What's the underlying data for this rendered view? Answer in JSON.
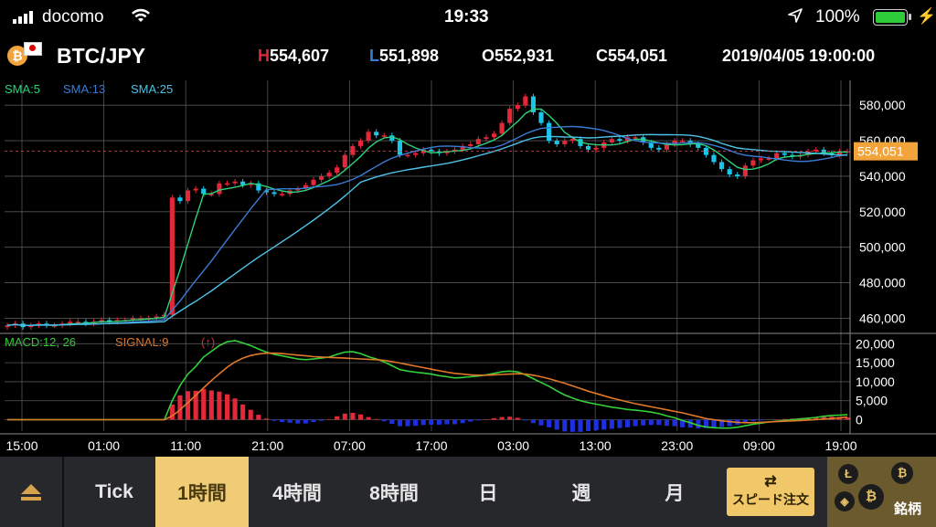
{
  "status": {
    "carrier": "docomo",
    "time": "19:33",
    "battery": "100%"
  },
  "header": {
    "pair": "BTC/JPY",
    "coin_symbol": "₿",
    "high": "H554,607",
    "low": "L551,898",
    "open": "O552,931",
    "close": "C554,051",
    "datetime": "2019/04/05  19:00:00"
  },
  "legend": {
    "sma5": "SMA:5",
    "sma13": "SMA:13",
    "sma25": "SMA:25",
    "macd": "MACD:12, 26",
    "signal": "SIGNAL:9",
    "arrow": "(↑)"
  },
  "price_axis": [
    "580,000",
    "560,000",
    "540,000",
    "520,000",
    "500,000",
    "480,000",
    "460,000"
  ],
  "current_price": "554,051",
  "macd_axis": [
    "20,000",
    "15,000",
    "10,000",
    "5,000",
    "0"
  ],
  "time_axis": [
    "15:00",
    "01:00",
    "11:00",
    "21:00",
    "07:00",
    "17:00",
    "03:00",
    "13:00",
    "23:00",
    "09:00",
    "19:00"
  ],
  "tabs": {
    "tick": "Tick",
    "h1": "1時間",
    "h4": "4時間",
    "h8": "8時間",
    "day": "日",
    "week": "週",
    "month": "月",
    "speed_order": "スピード注文",
    "brand": "銘柄"
  },
  "colors": {
    "up": "#e3283a",
    "down": "#1ac6e8",
    "sma5": "#2dd27a",
    "sma13": "#3a7bd5",
    "sma25": "#4cc3e6",
    "macd": "#32d23a",
    "signal": "#e0782a",
    "price_tag": "#f2a33a",
    "active_tab": "#f0cc76"
  },
  "chart_data": {
    "type": "line",
    "price_range": [
      452000,
      594000
    ],
    "close": [
      456000,
      457000,
      455000,
      456000,
      457000,
      456000,
      456000,
      457000,
      458000,
      458000,
      457000,
      458000,
      459000,
      458000,
      459000,
      459000,
      460000,
      460000,
      460000,
      461000,
      462000,
      528000,
      526000,
      532000,
      533000,
      530000,
      530000,
      536000,
      536000,
      537000,
      535000,
      536000,
      532000,
      531000,
      530000,
      530000,
      532000,
      533000,
      535000,
      538000,
      540000,
      542000,
      545000,
      552000,
      557000,
      560000,
      565000,
      563000,
      563000,
      560000,
      552000,
      552000,
      553000,
      555000,
      554000,
      553000,
      554000,
      555000,
      557000,
      558000,
      561000,
      562000,
      564000,
      570000,
      578000,
      580000,
      585000,
      576000,
      570000,
      560000,
      558000,
      560000,
      561000,
      557000,
      555000,
      556000,
      559000,
      561000,
      560000,
      562000,
      562000,
      559000,
      556000,
      555000,
      558000,
      560000,
      560000,
      558000,
      556000,
      552000,
      548000,
      544000,
      541000,
      540000,
      546000,
      549000,
      550000,
      550000,
      553000,
      552000,
      551000,
      552000,
      554000,
      555000,
      553000,
      552000,
      554000,
      554051
    ],
    "sma5_note": "computed from close",
    "macd": [
      0,
      0,
      0,
      0,
      0,
      0,
      0,
      0,
      0,
      0,
      0,
      0,
      0,
      0,
      0,
      0,
      0,
      0,
      0,
      0,
      0,
      5000,
      9000,
      12000,
      14000,
      16500,
      18000,
      19500,
      20500,
      20800,
      20200,
      19500,
      18600,
      17800,
      17200,
      16800,
      16400,
      16000,
      15800,
      16000,
      16200,
      16500,
      17200,
      17800,
      17900,
      17400,
      16600,
      16000,
      15200,
      14200,
      13200,
      12800,
      12500,
      12300,
      12000,
      11600,
      11300,
      11000,
      11100,
      11300,
      11500,
      11800,
      12200,
      12600,
      12800,
      12600,
      11800,
      10800,
      9800,
      8800,
      7600,
      6500,
      5700,
      5000,
      4500,
      4100,
      3700,
      3300,
      3000,
      2700,
      2500,
      2300,
      2000,
      1600,
      1000,
      500,
      -200,
      -800,
      -1500,
      -1900,
      -2100,
      -2200,
      -2200,
      -2000,
      -1600,
      -1200,
      -900,
      -600,
      -400,
      -200,
      0,
      200,
      400,
      600,
      900,
      1100,
      1200,
      1300
    ],
    "signal": [
      0,
      0,
      0,
      0,
      0,
      0,
      0,
      0,
      0,
      0,
      0,
      0,
      0,
      0,
      0,
      0,
      0,
      0,
      0,
      0,
      0,
      1000,
      2600,
      4500,
      6400,
      8400,
      10300,
      12100,
      13800,
      15200,
      16200,
      16900,
      17300,
      17500,
      17500,
      17400,
      17200,
      17000,
      16800,
      16600,
      16500,
      16400,
      16300,
      16200,
      16100,
      16000,
      15900,
      15800,
      15600,
      15300,
      14900,
      14500,
      14100,
      13700,
      13300,
      12900,
      12500,
      12200,
      12000,
      11800,
      11700,
      11700,
      11800,
      11900,
      12000,
      12100,
      12000,
      11700,
      11300,
      10800,
      10200,
      9600,
      8900,
      8200,
      7500,
      6900,
      6300,
      5700,
      5200,
      4700,
      4200,
      3800,
      3400,
      3000,
      2600,
      2200,
      1800,
      1300,
      800,
      300,
      0,
      -300,
      -500,
      -700,
      -800,
      -800,
      -700,
      -600,
      -500,
      -400,
      -300,
      -200,
      -100,
      0,
      200,
      300,
      500,
      700
    ],
    "x_axis_labels": [
      "15:00",
      "01:00",
      "11:00",
      "21:00",
      "07:00",
      "17:00",
      "03:00",
      "13:00",
      "23:00",
      "09:00",
      "19:00"
    ],
    "y_axis_labels": [
      "580,000",
      "560,000",
      "540,000",
      "520,000",
      "500,000",
      "480,000",
      "460,000"
    ],
    "macd_range": [
      -3000,
      22000
    ]
  }
}
